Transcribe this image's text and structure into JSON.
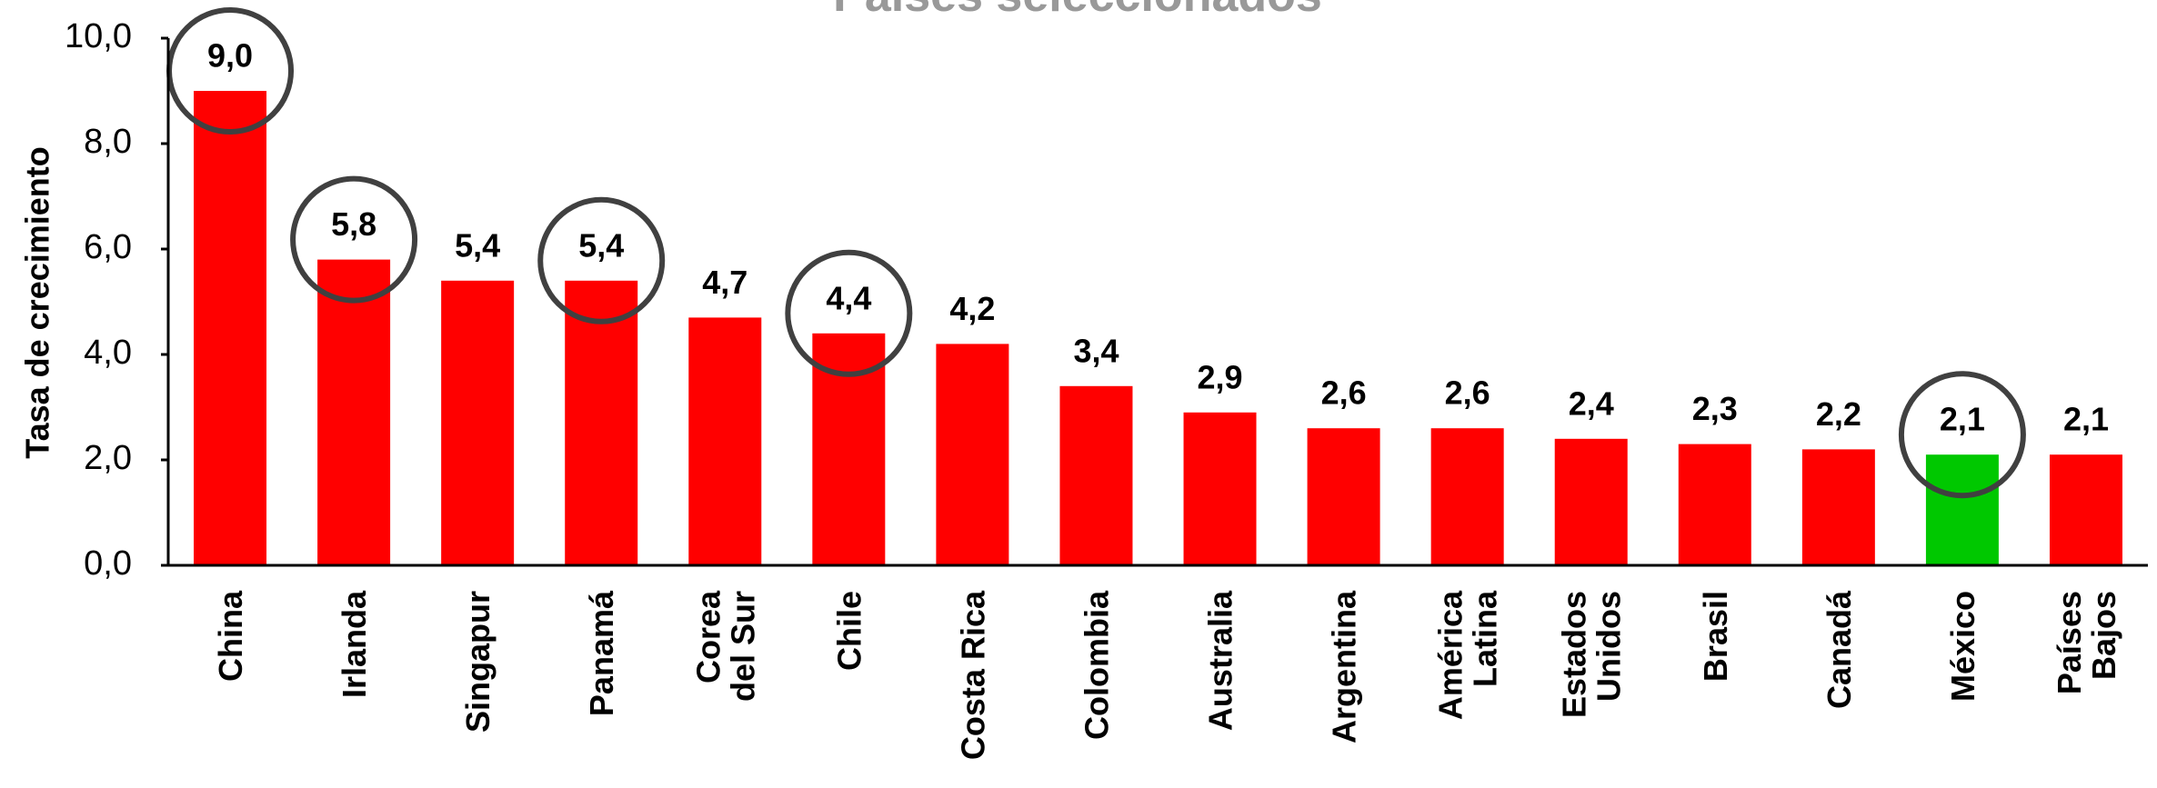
{
  "chart_data": {
    "type": "bar",
    "title": "Países seleccionados",
    "y_label": "Tasa de crecimiento",
    "categories": [
      "China",
      "Irlanda",
      "Singapur",
      "Panamá",
      "Corea\ndel Sur",
      "Chile",
      "Costa Rica",
      "Colombia",
      "Australia",
      "Argentina",
      "América\nLatina",
      "Estados\nUnidos",
      "Brasil",
      "Canadá",
      "México",
      "Países\nBajos"
    ],
    "values": [
      9.0,
      5.8,
      5.4,
      5.4,
      4.7,
      4.4,
      4.2,
      3.4,
      2.9,
      2.6,
      2.6,
      2.4,
      2.3,
      2.2,
      2.1,
      2.1
    ],
    "value_labels": [
      "9,0",
      "5,8",
      "5,4",
      "5,4",
      "4,7",
      "4,4",
      "4,2",
      "3,4",
      "2,9",
      "2,6",
      "2,6",
      "2,4",
      "2,3",
      "2,2",
      "2,1",
      "2,1"
    ],
    "colors": [
      "#ff0000",
      "#ff0000",
      "#ff0000",
      "#ff0000",
      "#ff0000",
      "#ff0000",
      "#ff0000",
      "#ff0000",
      "#ff0000",
      "#ff0000",
      "#ff0000",
      "#ff0000",
      "#ff0000",
      "#ff0000",
      "#00c800",
      "#ff0000"
    ],
    "circled": [
      true,
      true,
      false,
      true,
      false,
      true,
      false,
      false,
      false,
      false,
      false,
      false,
      false,
      false,
      true,
      false
    ],
    "ylim": [
      0,
      10
    ],
    "yticks": [
      {
        "value": 0,
        "label": "0,0"
      },
      {
        "value": 2,
        "label": "2,0"
      },
      {
        "value": 4,
        "label": "4,0"
      },
      {
        "value": 6,
        "label": "6,0"
      },
      {
        "value": 8,
        "label": "8,0"
      },
      {
        "value": 10,
        "label": "10,0"
      }
    ],
    "grid": false
  }
}
